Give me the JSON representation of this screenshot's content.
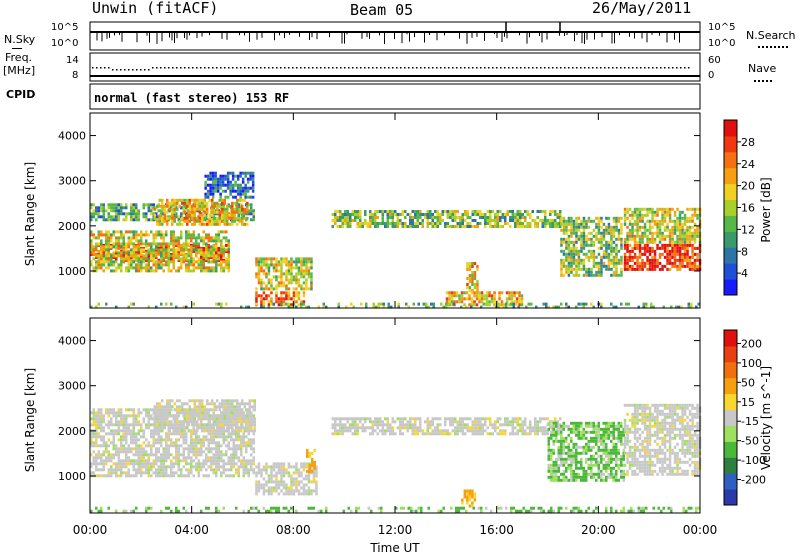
{
  "header": {
    "station": "Unwin (fitACF)",
    "beam": "Beam 05",
    "date": "26/May/2011"
  },
  "strips": {
    "nsky_label": "N.Sky",
    "nsky_ticks": [
      "10^5",
      "10^0"
    ],
    "nsearch_label": "N.Search",
    "freq_label": "Freq.",
    "freq_unit": "[MHz]",
    "freq_ticks_left": [
      "14",
      "8"
    ],
    "nave_label": "Nave",
    "nave_ticks_right": [
      "60",
      "0"
    ],
    "cpid_label": "CPID",
    "cpid_value": "normal (fast stereo) 153 RF"
  },
  "chart_data": [
    {
      "type": "heatmap",
      "panel": "power",
      "ylabel": "Slant Range [km]",
      "ylim": [
        180,
        4500
      ],
      "yticks": [
        1000,
        2000,
        3000,
        4000
      ],
      "xlim": [
        0,
        24
      ],
      "colorbar": {
        "label": "Power [dB]",
        "ticks": [
          "4",
          "8",
          "12",
          "16",
          "20",
          "24",
          "28"
        ],
        "colors": [
          "#1a1aff",
          "#1f4fd9",
          "#2d74a8",
          "#3a9a6c",
          "#58b847",
          "#a8cf2a",
          "#f0d020",
          "#f6a010",
          "#f47010",
          "#ef3a10",
          "#e01010"
        ]
      },
      "bands": [
        {
          "t0": 0,
          "t1": 5.5,
          "r0": 1200,
          "r1": 1600,
          "level": 0.88
        },
        {
          "t0": 0,
          "t1": 5.5,
          "r0": 1000,
          "r1": 1900,
          "level": 0.55
        },
        {
          "t0": 0,
          "t1": 6.5,
          "r0": 2100,
          "r1": 2500,
          "level": 0.35
        },
        {
          "t0": 2.5,
          "t1": 6.2,
          "r0": 2000,
          "r1": 2600,
          "level": 0.62
        },
        {
          "t0": 4.5,
          "t1": 6.5,
          "r0": 2600,
          "r1": 3200,
          "level": 0.2
        },
        {
          "t0": 6.5,
          "t1": 8.8,
          "r0": 600,
          "r1": 1300,
          "level": 0.55
        },
        {
          "t0": 6.5,
          "t1": 8.5,
          "r0": 250,
          "r1": 550,
          "level": 0.8
        },
        {
          "t0": 9.5,
          "t1": 18.5,
          "r0": 1950,
          "r1": 2350,
          "level": 0.45
        },
        {
          "t0": 14.8,
          "t1": 15.3,
          "r0": 550,
          "r1": 1200,
          "level": 0.62
        },
        {
          "t0": 14.0,
          "t1": 17.0,
          "r0": 250,
          "r1": 550,
          "level": 0.65
        },
        {
          "t0": 18.5,
          "t1": 21.0,
          "r0": 900,
          "r1": 2200,
          "level": 0.45
        },
        {
          "t0": 21.0,
          "t1": 24.0,
          "r0": 1000,
          "r1": 1600,
          "level": 0.9
        },
        {
          "t0": 21.0,
          "t1": 24.0,
          "r0": 1600,
          "r1": 2400,
          "level": 0.55
        },
        {
          "t0": 0,
          "t1": 24,
          "r0": 180,
          "r1": 300,
          "level": 0.4
        }
      ]
    },
    {
      "type": "heatmap",
      "panel": "velocity",
      "ylabel": "Slant Range [km]",
      "ylim": [
        180,
        4500
      ],
      "yticks": [
        1000,
        2000,
        3000,
        4000
      ],
      "xlim": [
        0,
        24
      ],
      "xlabel": "Time UT",
      "xticks": [
        "00:00",
        "04:00",
        "08:00",
        "12:00",
        "16:00",
        "20:00",
        "00:00"
      ],
      "colorbar": {
        "label": "Velocity [m s^-1]",
        "ticks": [
          "200",
          "100",
          "50",
          "15",
          "-15",
          "-50",
          "-100",
          "-200"
        ],
        "colors": [
          "#2a3aa8",
          "#2f5fc0",
          "#2f8040",
          "#4cb83a",
          "#a0e060",
          "#c8c8c8",
          "#f8d830",
          "#f6a010",
          "#f07010",
          "#e84010",
          "#e01010"
        ]
      },
      "bands": [
        {
          "t0": 0,
          "t1": 6.5,
          "r0": 1000,
          "r1": 2500,
          "level": "gray"
        },
        {
          "t0": 2.5,
          "t1": 6.5,
          "r0": 2000,
          "r1": 2700,
          "level": "gray"
        },
        {
          "t0": 6.5,
          "t1": 9.0,
          "r0": 600,
          "r1": 1300,
          "level": "gray"
        },
        {
          "t0": 8.5,
          "t1": 8.9,
          "r0": 1100,
          "r1": 1600,
          "level": "orange"
        },
        {
          "t0": 9.5,
          "t1": 18.5,
          "r0": 1900,
          "r1": 2300,
          "level": "gray"
        },
        {
          "t0": 14.6,
          "t1": 15.2,
          "r0": 300,
          "r1": 700,
          "level": "orange"
        },
        {
          "t0": 18.0,
          "t1": 21.0,
          "r0": 900,
          "r1": 2200,
          "level": "green"
        },
        {
          "t0": 21.0,
          "t1": 24.0,
          "r0": 1000,
          "r1": 2600,
          "level": "gray"
        },
        {
          "t0": 0,
          "t1": 24,
          "r0": 180,
          "r1": 320,
          "level": "green"
        }
      ]
    }
  ]
}
